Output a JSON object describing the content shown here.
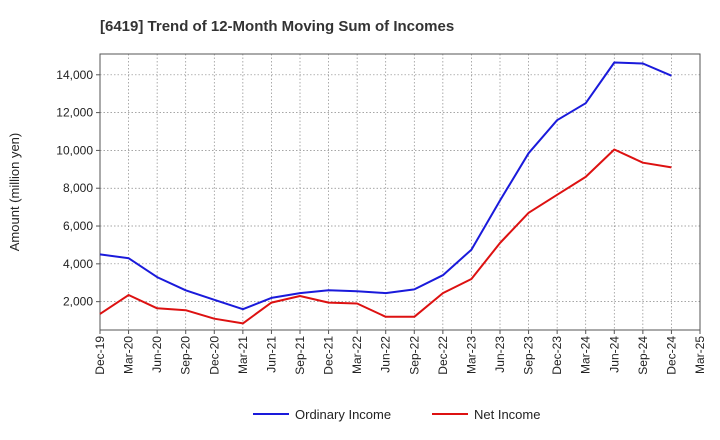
{
  "chart_data": {
    "type": "line",
    "title": "[6419]  Trend of 12-Month Moving Sum of Incomes",
    "xlabel": "",
    "ylabel": "Amount (million yen)",
    "ylim": [
      500,
      15100
    ],
    "yticks": [
      2000,
      4000,
      6000,
      8000,
      10000,
      12000,
      14000
    ],
    "ytick_labels": [
      "2,000",
      "4,000",
      "6,000",
      "8,000",
      "10,000",
      "12,000",
      "14,000"
    ],
    "grid": true,
    "legend_position": "bottom-center",
    "categories": [
      "Dec-19",
      "Mar-20",
      "Jun-20",
      "Sep-20",
      "Dec-20",
      "Mar-21",
      "Jun-21",
      "Sep-21",
      "Dec-21",
      "Mar-22",
      "Jun-22",
      "Sep-22",
      "Dec-22",
      "Mar-23",
      "Jun-23",
      "Sep-23",
      "Dec-23",
      "Mar-24",
      "Jun-24",
      "Sep-24",
      "Dec-24",
      "Mar-25"
    ],
    "series": [
      {
        "name": "Ordinary Income",
        "color": "#1a1adb",
        "values": [
          4500,
          4300,
          3300,
          2600,
          2100,
          1600,
          2200,
          2450,
          2600,
          2550,
          2450,
          2650,
          3400,
          4750,
          7350,
          9850,
          11600,
          12500,
          14650,
          14600,
          13950,
          null
        ]
      },
      {
        "name": "Net Income",
        "color": "#dd1111",
        "values": [
          1350,
          2350,
          1650,
          1550,
          1100,
          850,
          1950,
          2300,
          1950,
          1900,
          1200,
          1200,
          2450,
          3200,
          5100,
          6700,
          7650,
          8600,
          10050,
          9350,
          9100,
          null
        ]
      }
    ]
  }
}
